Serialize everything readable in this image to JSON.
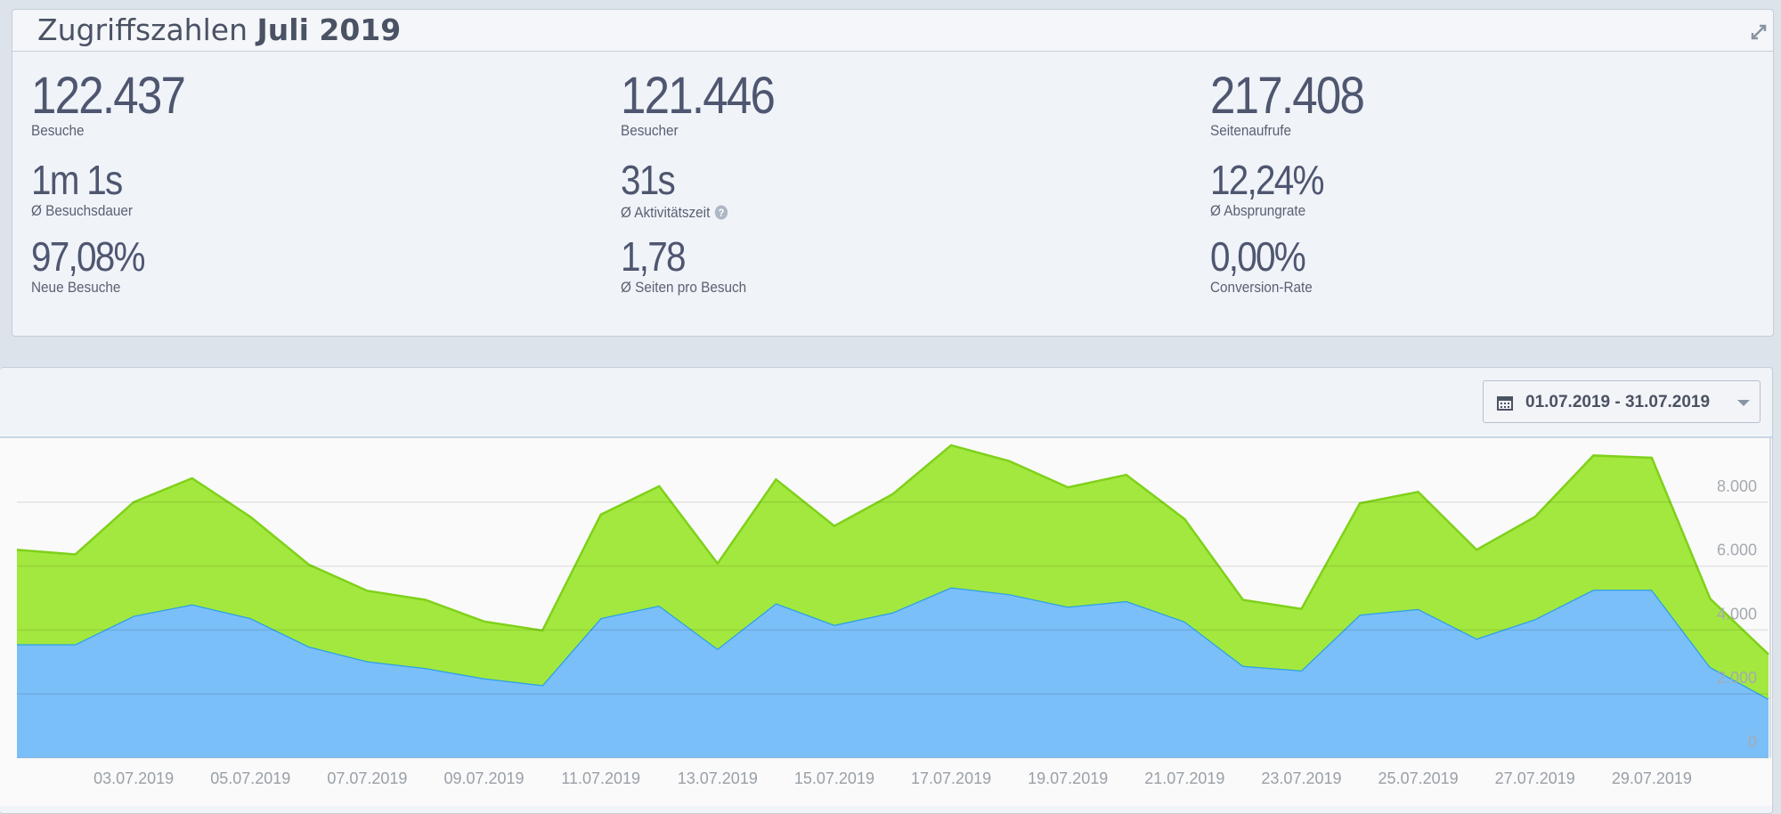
{
  "header": {
    "title": "Zugriffszahlen",
    "title_bold": "Juli 2019"
  },
  "stats": [
    {
      "value": "122.437",
      "label": "Besuche"
    },
    {
      "value": "121.446",
      "label": "Besucher"
    },
    {
      "value": "217.408",
      "label": "Seitenaufrufe"
    },
    {
      "value": "1m 1s",
      "label": "Ø Besuchsdauer"
    },
    {
      "value": "31s",
      "label": "Ø Aktivitätszeit"
    },
    {
      "value": "12,24%",
      "label": "Ø Absprungrate"
    },
    {
      "value": "97,08%",
      "label": "Neue Besuche"
    },
    {
      "value": "1,78",
      "label": "Ø Seiten pro Besuch"
    },
    {
      "value": "0,00%",
      "label": "Conversion-Rate"
    }
  ],
  "date_range": "01.07.2019 - 31.07.2019",
  "chart_data": {
    "type": "stacked_area",
    "categories": [
      null,
      null,
      "03.07.2019",
      null,
      "05.07.2019",
      null,
      "07.07.2019",
      null,
      "09.07.2019",
      null,
      "11.07.2019",
      null,
      "13.07.2019",
      null,
      "15.07.2019",
      null,
      "17.07.2019",
      null,
      "19.07.2019",
      null,
      "21.07.2019",
      null,
      "23.07.2019",
      null,
      "25.07.2019",
      null,
      "27.07.2019",
      null,
      "29.07.2019",
      null,
      null
    ],
    "series": [
      {
        "color": "#7bbff9",
        "line_color": "#2aa0e8",
        "values": [
          3556,
          3556,
          4444,
          4800,
          4373,
          3484,
          3022,
          2809,
          2489,
          2276,
          4373,
          4764,
          3413,
          4836,
          4160,
          4551,
          5333,
          5120,
          4729,
          4907,
          4267,
          2880,
          2738,
          4480,
          4658,
          3733,
          4338,
          5262,
          5262,
          2844,
          1849
        ]
      },
      {
        "color": "#a3e83f",
        "line_color": "#7fd11a",
        "values": [
          2951,
          2808,
          3556,
          3947,
          3165,
          2560,
          2205,
          2133,
          1778,
          1706,
          3236,
          3734,
          2667,
          3875,
          3093,
          3698,
          4445,
          4160,
          3733,
          3946,
          3200,
          2062,
          1920,
          3484,
          3662,
          2774,
          3200,
          4196,
          4125,
          2134,
          1387
        ]
      }
    ],
    "ylim": [
      0,
      10000
    ],
    "yticks": [
      0,
      {
        "value": 2000,
        "label": "2.000"
      },
      {
        "value": 4000,
        "label": "4.000"
      },
      {
        "value": 6000,
        "label": "6.000"
      },
      {
        "value": 8000,
        "label": "8.000"
      }
    ],
    "grid": true
  }
}
